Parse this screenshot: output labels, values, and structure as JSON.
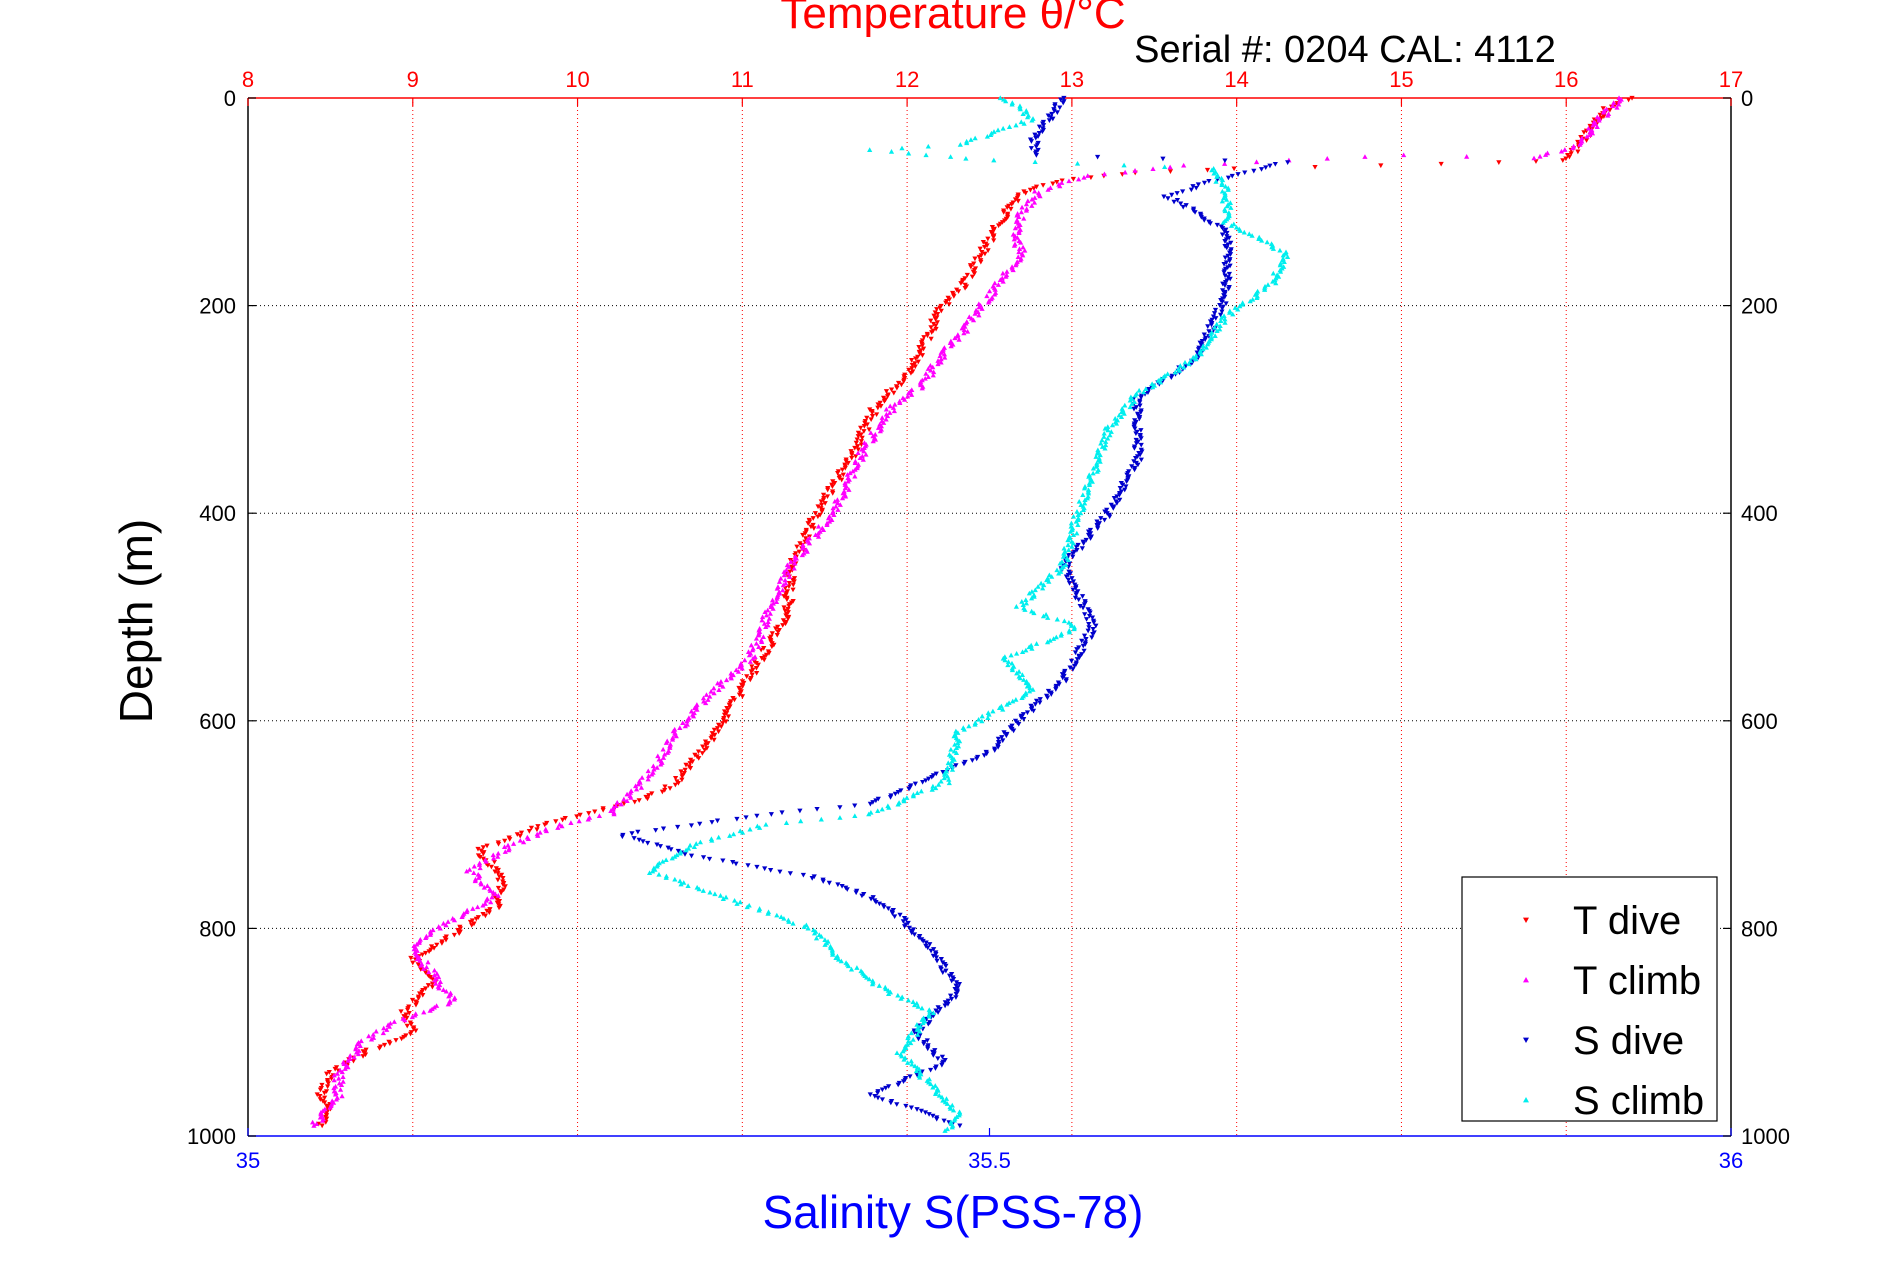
{
  "header": {
    "serial_text": "Serial #: 0204  CAL: 4112"
  },
  "chart_data": {
    "type": "scatter",
    "title": "Temperature θ/°C",
    "xlabel": "Salinity S(PSS-78)",
    "ylabel": "Depth (m)",
    "grid": true,
    "legend_position": "bottom-right",
    "temperature_axis": {
      "label": "Temperature θ/°C",
      "range": [
        8,
        17
      ],
      "ticks": [
        8,
        9,
        10,
        11,
        12,
        13,
        14,
        15,
        16,
        17
      ],
      "tick_labels": [
        "8",
        "9",
        "10",
        "11",
        "12",
        "13",
        "14",
        "15",
        "16",
        "17"
      ],
      "color": "#ff0000"
    },
    "salinity_axis": {
      "label": "Salinity S(PSS-78)",
      "range": [
        35,
        36
      ],
      "ticks": [
        35,
        35.5,
        36
      ],
      "tick_labels": [
        "35",
        "35.5",
        "36"
      ],
      "color": "#0000ff"
    },
    "depth_axis": {
      "label": "Depth (m)",
      "range": [
        0,
        1000
      ],
      "reversed": true,
      "ticks": [
        0,
        200,
        400,
        600,
        800,
        1000
      ],
      "tick_labels": [
        "0",
        "200",
        "400",
        "600",
        "800",
        "1000"
      ]
    },
    "series": [
      {
        "name": "T dive",
        "axis": "temperature",
        "color": "#ff0000",
        "marker": "triangle-down",
        "points": [
          [
            16.4,
            0
          ],
          [
            16.25,
            10
          ],
          [
            16.15,
            30
          ],
          [
            16.05,
            50
          ],
          [
            16.0,
            60
          ],
          [
            15.6,
            62
          ],
          [
            14.9,
            65
          ],
          [
            14.0,
            68
          ],
          [
            13.4,
            72
          ],
          [
            13.0,
            78
          ],
          [
            12.7,
            90
          ],
          [
            12.6,
            110
          ],
          [
            12.45,
            150
          ],
          [
            12.35,
            180
          ],
          [
            12.2,
            205
          ],
          [
            12.1,
            240
          ],
          [
            12.0,
            265
          ],
          [
            11.8,
            300
          ],
          [
            11.65,
            350
          ],
          [
            11.45,
            400
          ],
          [
            11.3,
            450
          ],
          [
            11.28,
            480
          ],
          [
            11.28,
            500
          ],
          [
            11.15,
            530
          ],
          [
            11.0,
            570
          ],
          [
            10.8,
            620
          ],
          [
            10.6,
            660
          ],
          [
            10.4,
            675
          ],
          [
            9.8,
            700
          ],
          [
            9.4,
            725
          ],
          [
            9.55,
            750
          ],
          [
            9.5,
            780
          ],
          [
            9.3,
            800
          ],
          [
            9.0,
            830
          ],
          [
            9.15,
            850
          ],
          [
            8.95,
            880
          ],
          [
            9.0,
            900
          ],
          [
            8.7,
            920
          ],
          [
            8.5,
            940
          ],
          [
            8.45,
            960
          ],
          [
            8.5,
            980
          ],
          [
            8.45,
            990
          ]
        ]
      },
      {
        "name": "T climb",
        "axis": "temperature",
        "color": "#ff00ff",
        "marker": "triangle-up",
        "points": [
          [
            16.35,
            0
          ],
          [
            16.2,
            20
          ],
          [
            16.1,
            45
          ],
          [
            15.8,
            58
          ],
          [
            15.0,
            55
          ],
          [
            14.3,
            60
          ],
          [
            13.7,
            65
          ],
          [
            13.1,
            75
          ],
          [
            12.8,
            90
          ],
          [
            12.7,
            110
          ],
          [
            12.65,
            130
          ],
          [
            12.7,
            150
          ],
          [
            12.55,
            180
          ],
          [
            12.45,
            200
          ],
          [
            12.35,
            225
          ],
          [
            12.2,
            250
          ],
          [
            12.1,
            275
          ],
          [
            11.9,
            300
          ],
          [
            11.7,
            350
          ],
          [
            11.55,
            400
          ],
          [
            11.3,
            450
          ],
          [
            11.15,
            500
          ],
          [
            11.05,
            540
          ],
          [
            10.8,
            575
          ],
          [
            10.6,
            610
          ],
          [
            10.45,
            650
          ],
          [
            10.2,
            690
          ],
          [
            9.9,
            700
          ],
          [
            9.6,
            720
          ],
          [
            9.35,
            745
          ],
          [
            9.5,
            770
          ],
          [
            9.15,
            800
          ],
          [
            9.0,
            820
          ],
          [
            9.15,
            850
          ],
          [
            9.25,
            870
          ],
          [
            8.9,
            890
          ],
          [
            8.7,
            910
          ],
          [
            8.55,
            940
          ],
          [
            8.55,
            960
          ],
          [
            8.4,
            990
          ]
        ]
      },
      {
        "name": "S dive",
        "axis": "salinity",
        "color": "#0000cc",
        "marker": "triangle-down",
        "points": [
          [
            35.55,
            0
          ],
          [
            35.54,
            20
          ],
          [
            35.53,
            40
          ],
          [
            35.53,
            55
          ],
          [
            35.7,
            62
          ],
          [
            35.65,
            80
          ],
          [
            35.62,
            95
          ],
          [
            35.64,
            110
          ],
          [
            35.66,
            130
          ],
          [
            35.66,
            160
          ],
          [
            35.66,
            190
          ],
          [
            35.65,
            220
          ],
          [
            35.64,
            250
          ],
          [
            35.6,
            290
          ],
          [
            35.6,
            320
          ],
          [
            35.6,
            350
          ],
          [
            35.58,
            400
          ],
          [
            35.55,
            450
          ],
          [
            35.56,
            480
          ],
          [
            35.57,
            510
          ],
          [
            35.55,
            560
          ],
          [
            35.52,
            600
          ],
          [
            35.5,
            630
          ],
          [
            35.42,
            680
          ],
          [
            35.35,
            690
          ],
          [
            35.25,
            710
          ],
          [
            35.3,
            730
          ],
          [
            35.38,
            750
          ],
          [
            35.42,
            770
          ],
          [
            35.44,
            790
          ],
          [
            35.46,
            820
          ],
          [
            35.48,
            860
          ],
          [
            35.45,
            900
          ],
          [
            35.47,
            930
          ],
          [
            35.42,
            960
          ],
          [
            35.48,
            990
          ]
        ]
      },
      {
        "name": "S climb",
        "axis": "salinity",
        "color": "#00eeee",
        "marker": "triangle-up",
        "points": [
          [
            35.51,
            0
          ],
          [
            35.53,
            20
          ],
          [
            35.48,
            45
          ],
          [
            35.42,
            50
          ],
          [
            35.5,
            60
          ],
          [
            35.65,
            68
          ],
          [
            35.66,
            90
          ],
          [
            35.66,
            120
          ],
          [
            35.7,
            150
          ],
          [
            35.69,
            180
          ],
          [
            35.66,
            210
          ],
          [
            35.64,
            250
          ],
          [
            35.6,
            285
          ],
          [
            35.58,
            320
          ],
          [
            35.57,
            360
          ],
          [
            35.56,
            400
          ],
          [
            35.55,
            450
          ],
          [
            35.52,
            490
          ],
          [
            35.56,
            510
          ],
          [
            35.51,
            540
          ],
          [
            35.53,
            570
          ],
          [
            35.48,
            610
          ],
          [
            35.47,
            660
          ],
          [
            35.42,
            690
          ],
          [
            35.35,
            700
          ],
          [
            35.3,
            720
          ],
          [
            35.27,
            745
          ],
          [
            35.32,
            770
          ],
          [
            35.38,
            800
          ],
          [
            35.4,
            830
          ],
          [
            35.43,
            860
          ],
          [
            35.46,
            880
          ],
          [
            35.44,
            920
          ],
          [
            35.46,
            950
          ],
          [
            35.48,
            980
          ],
          [
            35.47,
            995
          ]
        ]
      }
    ]
  }
}
